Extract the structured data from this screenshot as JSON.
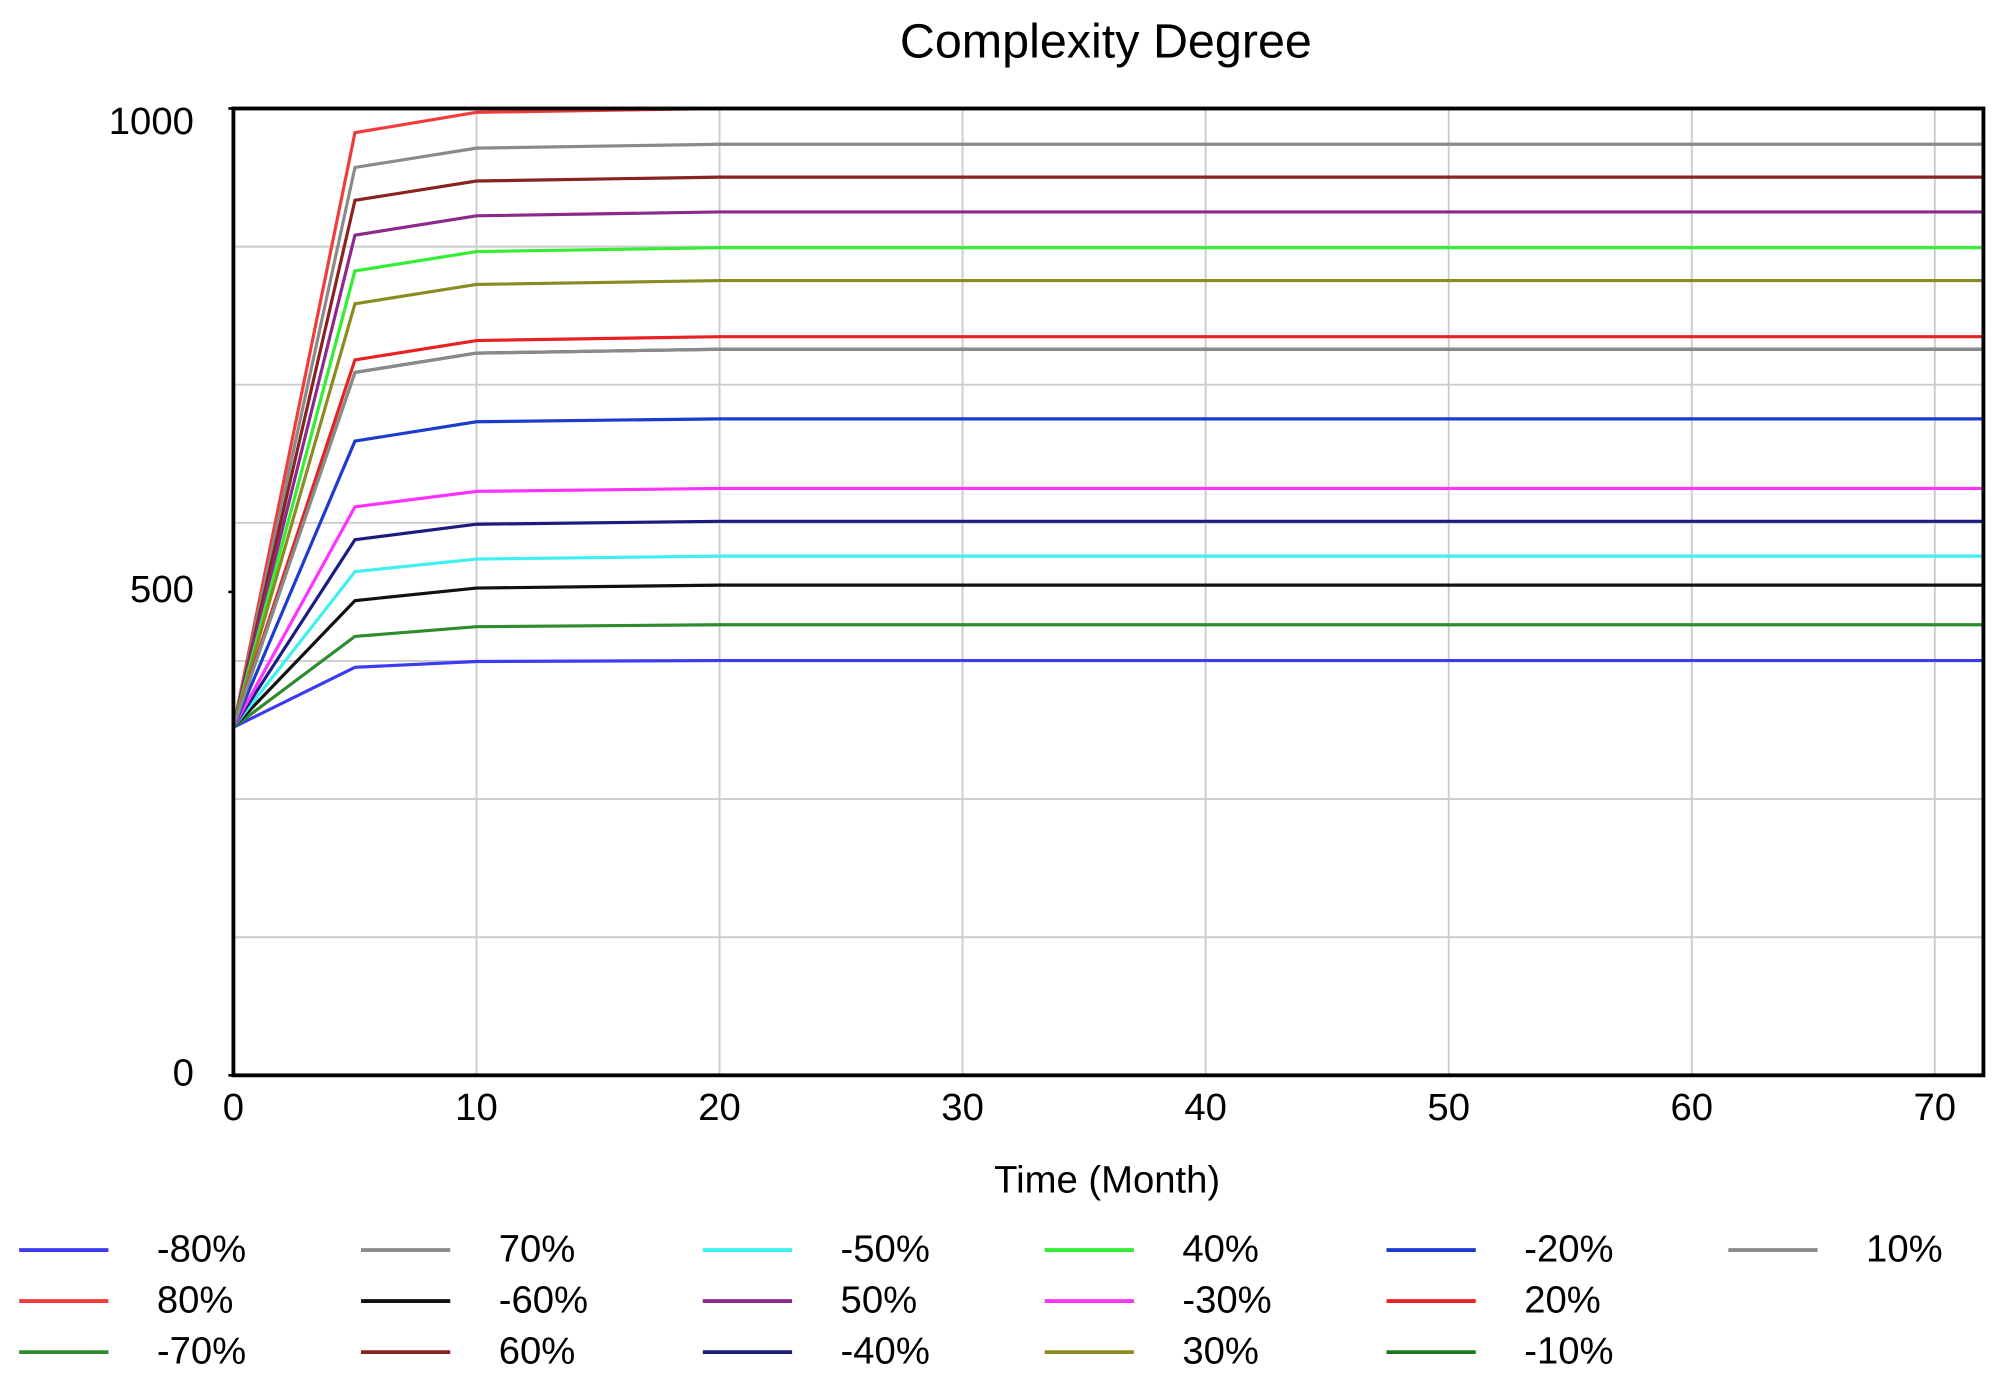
{
  "chart_data": {
    "type": "line",
    "title": "Complexity Degree",
    "x_label": "Time (Month)",
    "xlim": [
      0,
      72
    ],
    "xticks": [
      0,
      10,
      20,
      30,
      40,
      50,
      60,
      70
    ],
    "ylim": [
      0,
      1000
    ],
    "yticks": [
      0,
      500,
      1000
    ],
    "grid": true,
    "ygrid_divisions": 7,
    "legend": "bottom",
    "x": [
      0,
      5,
      10,
      20,
      72
    ],
    "series": [
      {
        "name": "-80%",
        "color": "#3b3bf0",
        "values": [
          360,
          422,
          428,
          429,
          429
        ]
      },
      {
        "name": "80%",
        "color": "#f23c3c",
        "values": [
          360,
          975,
          996,
          1000,
          1000
        ]
      },
      {
        "name": "-70%",
        "color": "#2e8b2e",
        "values": [
          360,
          454,
          464,
          466,
          466
        ]
      },
      {
        "name": "70%",
        "color": "#8a8a8a",
        "values": [
          360,
          939,
          959,
          963,
          963
        ]
      },
      {
        "name": "-60%",
        "color": "#111111",
        "values": [
          360,
          491,
          504,
          507,
          507
        ]
      },
      {
        "name": "60%",
        "color": "#8b2222",
        "values": [
          360,
          905,
          925,
          929,
          929
        ]
      },
      {
        "name": "-50%",
        "color": "#3ff0f0",
        "values": [
          360,
          521,
          534,
          537,
          537
        ]
      },
      {
        "name": "50%",
        "color": "#8b2a8b",
        "values": [
          360,
          869,
          889,
          893,
          893
        ]
      },
      {
        "name": "-40%",
        "color": "#1c1c80",
        "values": [
          360,
          554,
          570,
          573,
          573
        ]
      },
      {
        "name": "40%",
        "color": "#33ee33",
        "values": [
          360,
          832,
          852,
          856,
          856
        ]
      },
      {
        "name": "-30%",
        "color": "#ff33ff",
        "values": [
          360,
          588,
          604,
          607,
          607
        ]
      },
      {
        "name": "30%",
        "color": "#8b8b22",
        "values": [
          360,
          798,
          818,
          822,
          822
        ]
      },
      {
        "name": "-20%",
        "color": "#1c3ccc",
        "values": [
          360,
          656,
          676,
          679,
          679
        ]
      },
      {
        "name": "20%",
        "color": "#e82222",
        "values": [
          360,
          740,
          760,
          764,
          764
        ]
      },
      {
        "name": "-10%",
        "color": "#1c7a1c",
        "values": [
          360,
          727,
          747,
          751,
          751
        ]
      },
      {
        "name": "10%",
        "color": "#8a8a8a",
        "values": [
          360,
          727,
          747,
          751,
          751
        ]
      }
    ]
  }
}
